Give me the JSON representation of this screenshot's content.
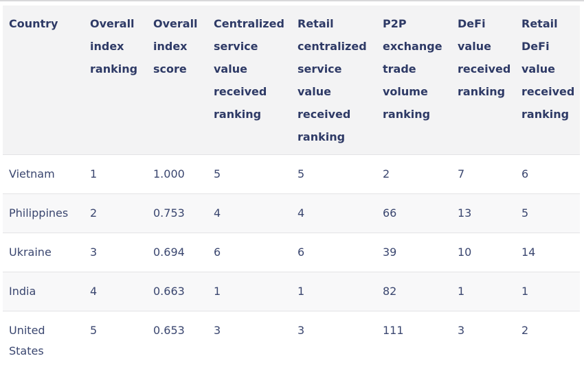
{
  "table": {
    "name": "global-crypto-adoption-index",
    "columns": [
      {
        "id": "country",
        "label": "Country"
      },
      {
        "id": "overall-index-ranking",
        "label": "Overall index ranking"
      },
      {
        "id": "overall-index-score",
        "label": "Overall index score"
      },
      {
        "id": "centralized-service-value-received-ranking",
        "label": "Centralized service value received ranking"
      },
      {
        "id": "retail-centralized-service-value-received-ranking",
        "label": "Retail centralized service value received ranking"
      },
      {
        "id": "p2p-exchange-trade-volume-ranking",
        "label": "P2P exchange trade volume ranking"
      },
      {
        "id": "defi-value-received-ranking",
        "label": "DeFi value received ranking"
      },
      {
        "id": "retail-defi-value-received-ranking",
        "label": "Retail DeFi value received ranking"
      }
    ],
    "rows": [
      {
        "cells": [
          "Vietnam",
          "1",
          "1.000",
          "5",
          "5",
          "2",
          "7",
          "6"
        ]
      },
      {
        "cells": [
          "Philippines",
          "2",
          "0.753",
          "4",
          "4",
          "66",
          "13",
          "5"
        ]
      },
      {
        "cells": [
          "Ukraine",
          "3",
          "0.694",
          "6",
          "6",
          "39",
          "10",
          "14"
        ]
      },
      {
        "cells": [
          "India",
          "4",
          "0.663",
          "1",
          "1",
          "82",
          "1",
          "1"
        ]
      },
      {
        "cells": [
          "United States",
          "5",
          "0.653",
          "3",
          "3",
          "111",
          "3",
          "2"
        ]
      }
    ]
  },
  "colors": {
    "header_navy": "#2e3a66",
    "text_navy": "#3a466f",
    "header_bg": "#f3f3f4",
    "stripe_bg": "#f8f8f9",
    "row_border": "#e3e3e5",
    "top_border": "#d8d8da"
  }
}
